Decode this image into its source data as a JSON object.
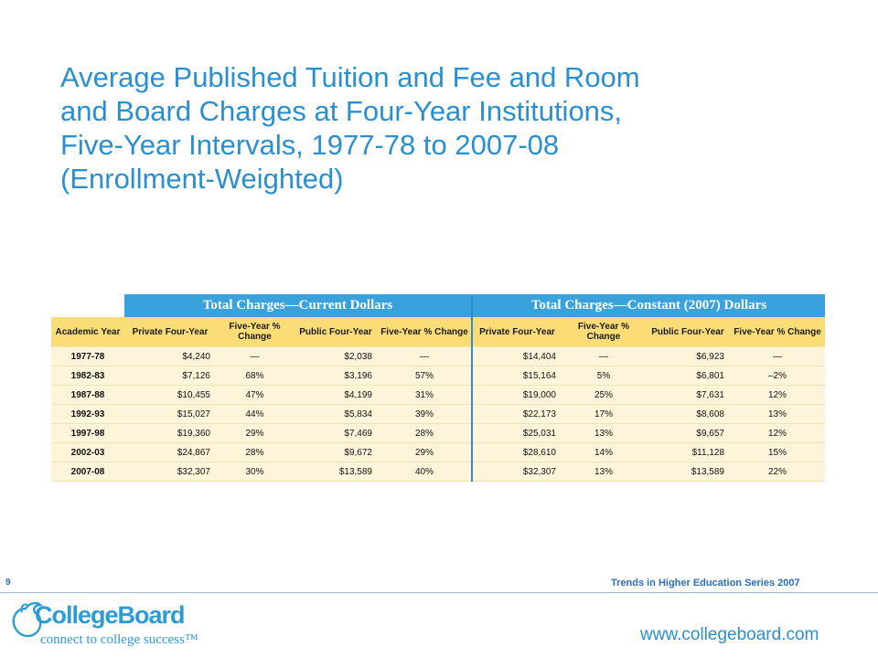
{
  "slide": {
    "title_lines": [
      "Average Published Tuition and Fee and Room",
      "and Board Charges at Four-Year Institutions,",
      "Five-Year Intervals, 1977-78 to 2007-08",
      "(Enrollment-Weighted)"
    ],
    "slide_number": "9",
    "series_label": "Trends in Higher Education Series 2007",
    "url": "www.collegeboard.com",
    "logo_name": "CollegeBoard",
    "logo_tagline": "connect to college success™"
  },
  "table": {
    "group_headers": [
      "Total Charges—Current Dollars",
      "Total Charges—Constant (2007) Dollars"
    ],
    "columns": [
      "Academic Year",
      "Private Four-Year",
      "Five-Year % Change",
      "Public Four-Year",
      "Five-Year % Change",
      "Private Four-Year",
      "Five-Year % Change",
      "Public Four-Year",
      "Five-Year % Change"
    ],
    "rows": [
      [
        "1977-78",
        "$4,240",
        "—",
        "$2,038",
        "—",
        "$14,404",
        "—",
        "$6,923",
        "—"
      ],
      [
        "1982-83",
        "$7,126",
        "68%",
        "$3,196",
        "57%",
        "$15,164",
        "5%",
        "$6,801",
        "–2%"
      ],
      [
        "1987-88",
        "$10,455",
        "47%",
        "$4,199",
        "31%",
        "$19,000",
        "25%",
        "$7,631",
        "12%"
      ],
      [
        "1992-93",
        "$15,027",
        "44%",
        "$5,834",
        "39%",
        "$22,173",
        "17%",
        "$8,608",
        "13%"
      ],
      [
        "1997-98",
        "$19,360",
        "29%",
        "$7,469",
        "28%",
        "$25,031",
        "13%",
        "$9,657",
        "12%"
      ],
      [
        "2002-03",
        "$24,867",
        "28%",
        "$9,672",
        "29%",
        "$28,610",
        "14%",
        "$11,128",
        "15%"
      ],
      [
        "2007-08",
        "$32,307",
        "30%",
        "$13,589",
        "40%",
        "$32,307",
        "13%",
        "$13,589",
        "22%"
      ]
    ]
  },
  "colors": {
    "title": "#2a8fd0",
    "group_header_bg": "#39a2dc",
    "column_header_bg": "#fbdd78",
    "row_bg": "#fdf4d9"
  }
}
